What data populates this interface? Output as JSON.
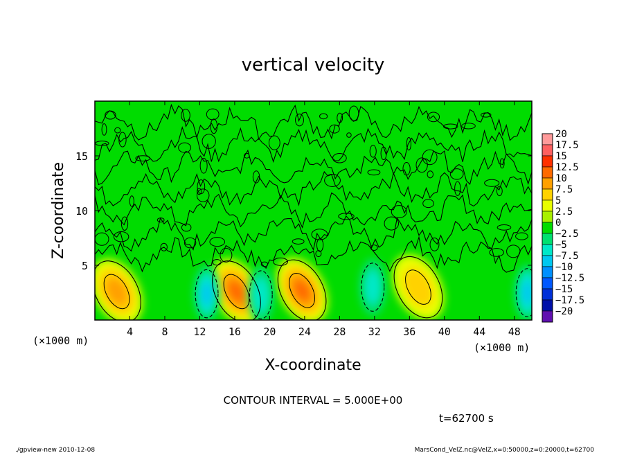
{
  "chart_data": {
    "type": "heatmap",
    "title": "vertical velocity",
    "xlabel": "X-coordinate",
    "ylabel": "Z-coordinate",
    "x_unit": "(×1000 m)",
    "y_unit": "(×1000 m)",
    "xlim": [
      0,
      50
    ],
    "ylim": [
      0,
      20
    ],
    "x_ticks": [
      4,
      8,
      12,
      16,
      20,
      24,
      28,
      32,
      36,
      40,
      44,
      48
    ],
    "y_ticks": [
      5,
      10,
      15
    ],
    "contour_interval_text": "CONTOUR INTERVAL = 5.000E+00",
    "time_text": "t=62700 s",
    "colorbar": {
      "levels": [
        "20",
        "17.5",
        "15",
        "12.5",
        "10",
        "7.5",
        "5",
        "2.5",
        "0",
        "−2.5",
        "−5",
        "−7.5",
        "−10",
        "−12.5",
        "−15",
        "−17.5",
        "−20"
      ],
      "colors": [
        "#ff9a9a",
        "#ff6060",
        "#ff3000",
        "#ff6a00",
        "#ffa000",
        "#ffd200",
        "#e8ff00",
        "#a8f000",
        "#00dc00",
        "#00e070",
        "#00e8c8",
        "#00c8f0",
        "#0090ff",
        "#0058ff",
        "#0030d8",
        "#0010a8",
        "#6010b0"
      ]
    },
    "updrafts": [
      {
        "x": 2.5,
        "z": 2.6,
        "peak": 7.5
      },
      {
        "x": 16.2,
        "z": 2.6,
        "peak": 10
      },
      {
        "x": 23.7,
        "z": 2.7,
        "peak": 10
      },
      {
        "x": 37.0,
        "z": 3.0,
        "peak": 5
      }
    ],
    "downdrafts": [
      {
        "x": 12.8,
        "z": 2.4,
        "peak": -7.5
      },
      {
        "x": 19.0,
        "z": 2.3,
        "peak": -5
      },
      {
        "x": 31.8,
        "z": 3.0,
        "peak": -5
      },
      {
        "x": 49.5,
        "z": 2.5,
        "peak": -7.5
      }
    ]
  },
  "footer": {
    "left": "./gpview-new   2010-12-08",
    "right": "MarsCond_VelZ.nc@VelZ,x=0:50000,z=0:20000,t=62700"
  },
  "colors": {
    "background": "#00dc00",
    "axis": "#000000"
  }
}
